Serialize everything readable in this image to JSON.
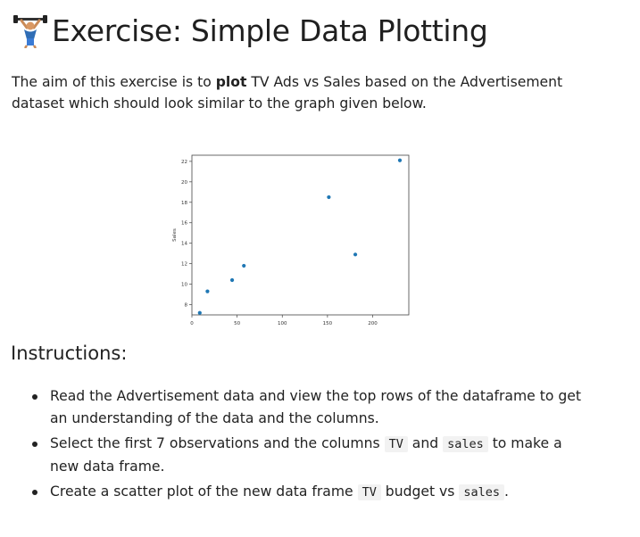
{
  "header": {
    "title": "Exercise: Simple Data Plotting",
    "icon": "weightlifter-icon"
  },
  "intro": {
    "part1": "The aim of this exercise is to ",
    "bold": "plot",
    "part2": " TV Ads vs Sales based on the Advertisement dataset which should look similar to the graph given below."
  },
  "instructions": {
    "heading": "Instructions:",
    "items": [
      {
        "text": "Read the Advertisement data and view the top rows of the dataframe to get an understanding of the data and the columns."
      },
      {
        "pre": "Select the first 7 observations and the columns ",
        "code1": "TV",
        "mid": " and ",
        "code2": "sales",
        "post": " to make a new data frame."
      },
      {
        "pre": "Create a scatter plot of the new data frame ",
        "code1": "TV",
        "mid": " budget vs ",
        "code2": "sales",
        "post": "."
      }
    ]
  },
  "chart_data": {
    "type": "scatter",
    "title": "",
    "xlabel": "",
    "ylabel": "Sales",
    "xlim": [
      0,
      240
    ],
    "ylim": [
      7,
      22.6
    ],
    "xticks": [
      0,
      50,
      100,
      150,
      200
    ],
    "yticks": [
      8,
      10,
      12,
      14,
      16,
      18,
      20,
      22
    ],
    "grid": false,
    "x": [
      8.7,
      17.2,
      44.5,
      57.5,
      151.5,
      180.8,
      230.1
    ],
    "y": [
      7.2,
      9.3,
      10.4,
      11.8,
      18.5,
      12.9,
      22.1
    ],
    "colors": {
      "point": "#1f77b4",
      "axes": "#444444"
    }
  }
}
